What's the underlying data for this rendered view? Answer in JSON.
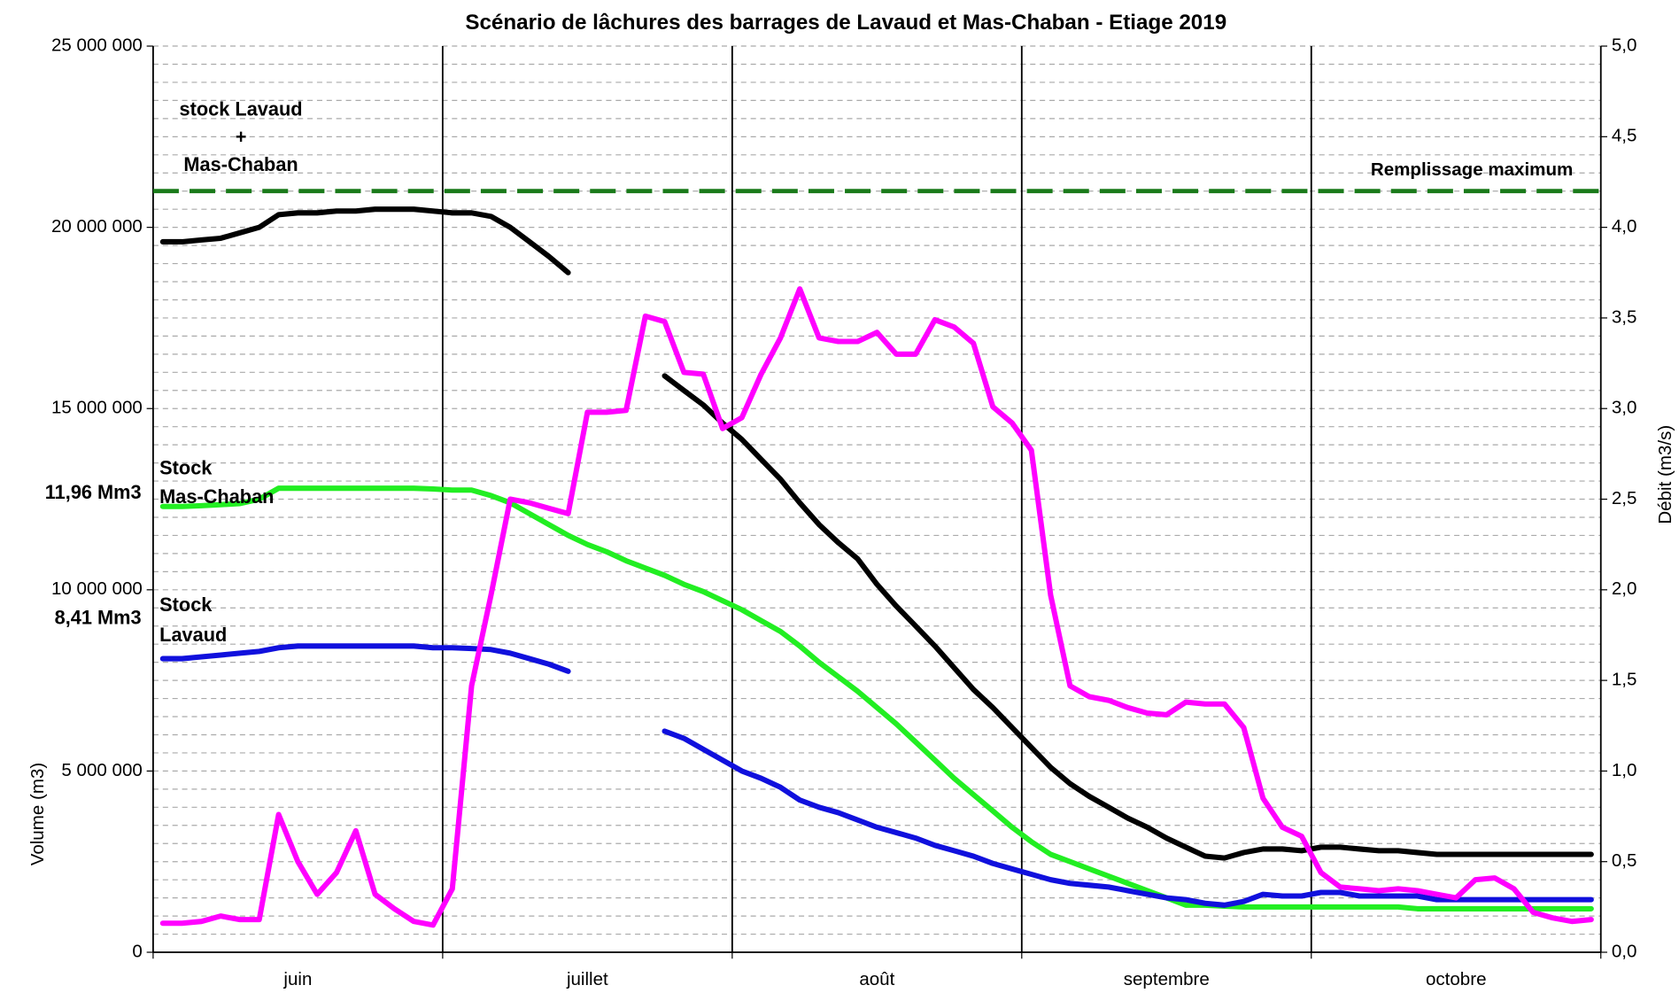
{
  "chart_data": {
    "type": "line",
    "title": "Scénario de lâchures des barrages de Lavaud et Mas-Chaban - Etiage 2019",
    "ylabel": "Volume (m3)",
    "y2label": "Débit (m3/s)",
    "categories": [
      null,
      null,
      null,
      null,
      null,
      null,
      null,
      "juin",
      null,
      null,
      null,
      null,
      null,
      null,
      null,
      null,
      null,
      null,
      null,
      null,
      null,
      null,
      "juillet",
      null,
      null,
      null,
      null,
      null,
      null,
      null,
      null,
      null,
      null,
      null,
      null,
      null,
      null,
      "août",
      null,
      null,
      null,
      null,
      null,
      null,
      null,
      null,
      null,
      null,
      null,
      null,
      null,
      null,
      "septembre",
      null,
      null,
      null,
      null,
      null,
      null,
      null,
      null,
      null,
      null,
      null,
      null,
      null,
      null,
      "octobre",
      null,
      null,
      null,
      null,
      null,
      null,
      null
    ],
    "ylim": [
      0,
      25000000
    ],
    "yticks": [
      0,
      {
        "value": 5000000,
        "label": "5 000 000"
      },
      {
        "value": 10000000,
        "label": "10 000 000"
      },
      {
        "value": 15000000,
        "label": "15 000 000"
      },
      {
        "value": 20000000,
        "label": "20 000 000"
      },
      {
        "value": 25000000,
        "label": "25 000 000"
      }
    ],
    "y2lim": [
      0,
      5
    ],
    "y2ticks": [
      {
        "value": 0,
        "label": "0,0"
      },
      {
        "value": 0.5,
        "label": "0,5"
      },
      {
        "value": 1,
        "label": "1,0"
      },
      {
        "value": 1.5,
        "label": "1,5"
      },
      {
        "value": 2,
        "label": "2,0"
      },
      {
        "value": 2.5,
        "label": "2,5"
      },
      {
        "value": 3,
        "label": "3,0"
      },
      {
        "value": 3.5,
        "label": "3,5"
      },
      {
        "value": 4,
        "label": "4,0"
      },
      {
        "value": 4.5,
        "label": "4,5"
      },
      {
        "value": 5,
        "label": "5,0"
      }
    ],
    "grid": true,
    "series": [
      {
        "color": "#000000",
        "values": [
          19600000,
          19600000,
          19650000,
          19700000,
          19850000,
          20000000,
          20350000,
          20400000,
          20400000,
          20450000,
          20450000,
          20500000,
          20500000,
          20500000,
          20450000,
          20400000,
          20400000,
          20300000,
          20000000,
          19600000,
          19200000,
          18750000,
          null,
          null,
          null,
          null,
          15900000,
          15500000,
          15100000,
          14600000,
          14150000,
          13600000,
          13050000,
          12400000,
          11800000,
          11300000,
          10850000,
          10150000,
          9550000,
          9000000,
          8450000,
          7850000,
          7250000,
          6750000,
          6200000,
          5650000,
          5100000,
          4650000,
          4300000,
          4000000,
          3700000,
          3450000,
          3150000,
          2900000,
          2650000,
          2600000,
          2750000,
          2850000,
          2850000,
          2800000,
          2900000,
          2900000,
          2850000,
          2800000,
          2800000,
          2750000,
          2700000,
          2700000,
          2700000,
          2700000,
          2700000,
          2700000,
          2700000,
          2700000,
          2700000
        ]
      },
      {
        "color": "#22ee22",
        "values": [
          12300000,
          12300000,
          12320000,
          12350000,
          12380000,
          12500000,
          12800000,
          12800000,
          12800000,
          12800000,
          12800000,
          12800000,
          12800000,
          12800000,
          12780000,
          12750000,
          12750000,
          12600000,
          12400000,
          12100000,
          11800000,
          11500000,
          11250000,
          11050000,
          10800000,
          10600000,
          10400000,
          10150000,
          9950000,
          9700000,
          9450000,
          9150000,
          8850000,
          8450000,
          8000000,
          7600000,
          7200000,
          6750000,
          6300000,
          5800000,
          5300000,
          4800000,
          4350000,
          3900000,
          3450000,
          3050000,
          2700000,
          2500000,
          2300000,
          2100000,
          1900000,
          1700000,
          1500000,
          1300000,
          1300000,
          1270000,
          1250000,
          1250000,
          1250000,
          1250000,
          1250000,
          1250000,
          1250000,
          1250000,
          1250000,
          1200000,
          1200000,
          1200000,
          1200000,
          1200000,
          1200000,
          1200000,
          1200000,
          1200000,
          1200000
        ]
      },
      {
        "color": "#1010dd",
        "values": [
          8100000,
          8100000,
          8150000,
          8200000,
          8250000,
          8300000,
          8400000,
          8450000,
          8450000,
          8450000,
          8450000,
          8450000,
          8450000,
          8450000,
          8400000,
          8400000,
          8380000,
          8350000,
          8250000,
          8100000,
          7950000,
          7750000,
          null,
          null,
          null,
          null,
          6100000,
          5900000,
          5600000,
          5300000,
          5000000,
          4800000,
          4550000,
          4200000,
          4000000,
          3850000,
          3650000,
          3450000,
          3300000,
          3150000,
          2950000,
          2800000,
          2650000,
          2450000,
          2300000,
          2150000,
          2000000,
          1900000,
          1850000,
          1800000,
          1700000,
          1600000,
          1500000,
          1450000,
          1350000,
          1300000,
          1400000,
          1600000,
          1550000,
          1550000,
          1650000,
          1650000,
          1550000,
          1550000,
          1550000,
          1550000,
          1450000,
          1450000,
          1450000,
          1450000,
          1450000,
          1450000,
          1450000,
          1450000,
          1450000
        ]
      },
      {
        "color": "#ff00ff",
        "axis": "y2",
        "values": [
          0.16,
          0.16,
          0.17,
          0.2,
          0.18,
          0.18,
          0.76,
          0.5,
          0.32,
          0.44,
          0.67,
          0.32,
          0.24,
          0.17,
          0.15,
          0.35,
          1.47,
          1.97,
          2.5,
          2.48,
          2.45,
          2.42,
          2.98,
          2.98,
          2.99,
          3.51,
          3.48,
          3.2,
          3.19,
          2.89,
          2.95,
          3.19,
          3.39,
          3.66,
          3.39,
          3.37,
          3.37,
          3.42,
          3.3,
          3.3,
          3.49,
          3.45,
          3.36,
          3.01,
          2.92,
          2.77,
          1.97,
          1.47,
          1.41,
          1.39,
          1.35,
          1.32,
          1.31,
          1.38,
          1.37,
          1.37,
          1.24,
          0.85,
          0.69,
          0.64,
          0.44,
          0.36,
          0.35,
          0.34,
          0.35,
          0.34,
          0.32,
          0.3,
          0.4,
          0.41,
          0.35,
          0.22,
          0.19,
          0.17,
          0.18
        ]
      }
    ],
    "reference_lines": [
      {
        "value": 21000000,
        "label": "Remplissage maximum",
        "color": "#1a7a1a"
      }
    ],
    "annotations": [
      {
        "text": "stock Lavaud",
        "color": "#000000"
      },
      {
        "text": "+",
        "color": "#000000"
      },
      {
        "text": "Mas-Chaban",
        "color": "#000000"
      },
      {
        "text": "Stock",
        "color": "#22ee22"
      },
      {
        "text": "Mas-Chaban",
        "color": "#22ee22"
      },
      {
        "text": "11,96 Mm3",
        "color": "#22ee22"
      },
      {
        "text": "Stock",
        "color": "#1010dd"
      },
      {
        "text": "Lavaud",
        "color": "#1010dd"
      },
      {
        "text": "8,41 Mm3",
        "color": "#1010dd"
      }
    ]
  }
}
